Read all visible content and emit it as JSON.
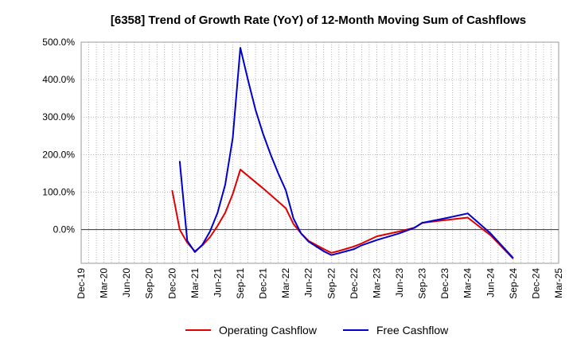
{
  "chart_data": {
    "type": "line",
    "title": "[6358]  Trend of Growth Rate (YoY) of 12-Month Moving Sum of Cashflows",
    "xlabel": "",
    "ylabel": "",
    "ylim": [
      -90,
      500
    ],
    "y_ticks": [
      0,
      100,
      200,
      300,
      400,
      500
    ],
    "y_tick_labels": [
      "0.0%",
      "100.0%",
      "200.0%",
      "300.0%",
      "400.0%",
      "500.0%"
    ],
    "x_tick_labels": [
      "Dec-19",
      "Mar-20",
      "Jun-20",
      "Sep-20",
      "Dec-20",
      "Mar-21",
      "Jun-21",
      "Sep-21",
      "Dec-21",
      "Mar-22",
      "Jun-22",
      "Sep-22",
      "Dec-22",
      "Mar-23",
      "Jun-23",
      "Sep-23",
      "Dec-23",
      "Mar-24",
      "Jun-24",
      "Sep-24",
      "Dec-24",
      "Mar-25"
    ],
    "grid": true,
    "legend_position": "bottom",
    "series": [
      {
        "name": "Operating Cashflow",
        "color": "#e00000",
        "points": [
          [
            "Dec-20",
            105
          ],
          [
            "Jan-21",
            0
          ],
          [
            "Feb-21",
            -35
          ],
          [
            "Mar-21",
            -58
          ],
          [
            "Apr-21",
            -42
          ],
          [
            "May-21",
            -20
          ],
          [
            "Jun-21",
            10
          ],
          [
            "Jul-21",
            45
          ],
          [
            "Aug-21",
            95
          ],
          [
            "Sep-21",
            160
          ],
          [
            "Dec-21",
            110
          ],
          [
            "Mar-22",
            57
          ],
          [
            "Apr-22",
            15
          ],
          [
            "May-22",
            -10
          ],
          [
            "Jun-22",
            -30
          ],
          [
            "Aug-22",
            -52
          ],
          [
            "Sep-22",
            -62
          ],
          [
            "Oct-22",
            -57
          ],
          [
            "Dec-22",
            -45
          ],
          [
            "Jan-23",
            -37
          ],
          [
            "Mar-23",
            -18
          ],
          [
            "Jun-23",
            -5
          ],
          [
            "Aug-23",
            5
          ],
          [
            "Sep-23",
            18
          ],
          [
            "Dec-23",
            25
          ],
          [
            "Mar-24",
            32
          ],
          [
            "Jun-24",
            -15
          ],
          [
            "Sep-24",
            -78
          ]
        ]
      },
      {
        "name": "Free Cashflow",
        "color": "#0000cc",
        "points": [
          [
            "Jan-21",
            183
          ],
          [
            "Feb-21",
            -30
          ],
          [
            "Mar-21",
            -60
          ],
          [
            "Apr-21",
            -40
          ],
          [
            "May-21",
            -5
          ],
          [
            "Jun-21",
            45
          ],
          [
            "Jul-21",
            120
          ],
          [
            "Aug-21",
            245
          ],
          [
            "Sep-21",
            485
          ],
          [
            "Oct-21",
            400
          ],
          [
            "Nov-21",
            320
          ],
          [
            "Dec-21",
            255
          ],
          [
            "Jan-22",
            200
          ],
          [
            "Feb-22",
            150
          ],
          [
            "Mar-22",
            105
          ],
          [
            "Apr-22",
            30
          ],
          [
            "May-22",
            -10
          ],
          [
            "Jun-22",
            -32
          ],
          [
            "Aug-22",
            -58
          ],
          [
            "Sep-22",
            -68
          ],
          [
            "Oct-22",
            -63
          ],
          [
            "Dec-22",
            -52
          ],
          [
            "Jan-23",
            -42
          ],
          [
            "Mar-23",
            -28
          ],
          [
            "Jun-23",
            -10
          ],
          [
            "Aug-23",
            5
          ],
          [
            "Sep-23",
            18
          ],
          [
            "Dec-23",
            30
          ],
          [
            "Mar-24",
            43
          ],
          [
            "Jun-24",
            -10
          ],
          [
            "Sep-24",
            -76
          ]
        ]
      }
    ]
  }
}
